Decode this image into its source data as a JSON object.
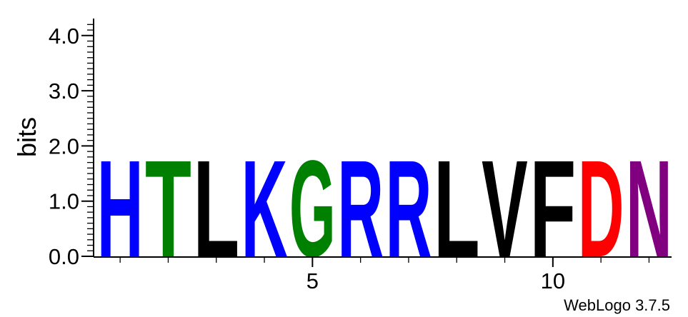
{
  "chart_data": {
    "type": "sequence-logo",
    "ylabel": "bits",
    "ylim": [
      0,
      4.3
    ],
    "y_ticks": [
      {
        "value": 0.0,
        "label": "0.0"
      },
      {
        "value": 1.0,
        "label": "1.0"
      },
      {
        "value": 2.0,
        "label": "2.0"
      },
      {
        "value": 3.0,
        "label": "3.0"
      },
      {
        "value": 4.0,
        "label": "4.0"
      }
    ],
    "x_ticks": [
      {
        "value": 5,
        "label": "5"
      },
      {
        "value": 10,
        "label": "10"
      }
    ],
    "positions": [
      {
        "pos": 1,
        "letter": "H",
        "bits": 1.8,
        "color": "#0000ff"
      },
      {
        "pos": 2,
        "letter": "T",
        "bits": 1.8,
        "color": "#008000"
      },
      {
        "pos": 3,
        "letter": "L",
        "bits": 1.8,
        "color": "#000000"
      },
      {
        "pos": 4,
        "letter": "K",
        "bits": 1.8,
        "color": "#0000ff"
      },
      {
        "pos": 5,
        "letter": "G",
        "bits": 1.8,
        "color": "#008000"
      },
      {
        "pos": 6,
        "letter": "R",
        "bits": 1.8,
        "color": "#0000ff"
      },
      {
        "pos": 7,
        "letter": "R",
        "bits": 1.8,
        "color": "#0000ff"
      },
      {
        "pos": 8,
        "letter": "L",
        "bits": 1.8,
        "color": "#000000"
      },
      {
        "pos": 9,
        "letter": "V",
        "bits": 1.8,
        "color": "#000000"
      },
      {
        "pos": 10,
        "letter": "F",
        "bits": 1.8,
        "color": "#000000"
      },
      {
        "pos": 11,
        "letter": "D",
        "bits": 1.8,
        "color": "#ff0000"
      },
      {
        "pos": 12,
        "letter": "N",
        "bits": 1.8,
        "color": "#800080"
      }
    ],
    "credit": "WebLogo 3.7.5"
  }
}
